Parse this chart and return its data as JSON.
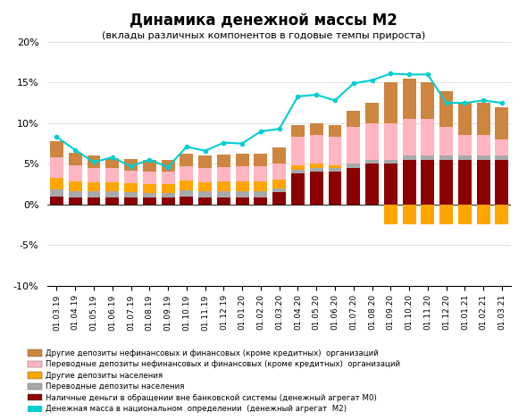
{
  "title": "Динамика денежной массы М2",
  "subtitle": "(вклады различных компонентов в годовые темпы прироста)",
  "labels": [
    "01.03.19",
    "01.04.19",
    "01.05.19",
    "01.06.19",
    "01.07.19",
    "01.08.19",
    "01.09.19",
    "01.10.19",
    "01.11.19",
    "01.12.19",
    "01.01.20",
    "01.02.20",
    "01.03.20",
    "01.04.20",
    "01.05.20",
    "01.06.20",
    "01.07.20",
    "01.08.20",
    "01.09.20",
    "01.10.20",
    "01.11.20",
    "01.12.20",
    "01.01.21",
    "01.02.21",
    "01.03.21"
  ],
  "m0": [
    1.0,
    0.9,
    0.8,
    0.9,
    0.8,
    0.8,
    0.8,
    1.0,
    0.9,
    0.9,
    0.9,
    0.9,
    1.5,
    3.8,
    4.0,
    4.0,
    4.5,
    5.0,
    5.0,
    5.5,
    5.5,
    5.5,
    5.5,
    5.5,
    5.5
  ],
  "transp_deposits_pop": [
    0.8,
    0.7,
    0.8,
    0.7,
    0.7,
    0.6,
    0.6,
    0.7,
    0.7,
    0.7,
    0.7,
    0.7,
    0.5,
    0.5,
    0.5,
    0.5,
    0.5,
    0.5,
    0.5,
    0.5,
    0.5,
    0.5,
    0.5,
    0.5,
    0.5
  ],
  "other_deposits_pop": [
    1.5,
    1.2,
    1.1,
    1.1,
    1.1,
    1.1,
    1.1,
    1.2,
    1.1,
    1.2,
    1.2,
    1.2,
    1.0,
    0.5,
    0.5,
    0.3,
    0.0,
    0.0,
    -2.5,
    -2.5,
    -2.5,
    -2.5,
    -2.5,
    -2.5,
    -2.5
  ],
  "transp_deposits_org": [
    2.5,
    2.0,
    1.8,
    1.8,
    1.5,
    1.5,
    1.5,
    1.8,
    1.8,
    1.8,
    1.9,
    1.9,
    2.0,
    3.5,
    3.5,
    3.5,
    4.5,
    4.5,
    4.5,
    4.5,
    4.5,
    3.5,
    2.5,
    2.5,
    2.0
  ],
  "other_deposits_org": [
    2.0,
    1.5,
    1.5,
    1.2,
    1.5,
    1.5,
    1.5,
    1.5,
    1.5,
    1.5,
    1.5,
    1.5,
    2.0,
    1.5,
    1.5,
    1.5,
    2.0,
    2.5,
    5.0,
    5.0,
    4.5,
    4.5,
    4.0,
    4.0,
    4.0
  ],
  "m2_line": [
    8.3,
    6.7,
    5.2,
    5.8,
    4.7,
    5.5,
    4.6,
    7.1,
    6.6,
    7.6,
    7.5,
    9.0,
    9.3,
    13.3,
    13.5,
    12.8,
    14.9,
    15.3,
    16.1,
    16.0,
    16.0,
    12.5,
    12.5,
    12.8,
    12.5
  ],
  "colors": {
    "m0": "#8B0000",
    "transp_deposits_pop": "#A9A9A9",
    "other_deposits_pop": "#FFA500",
    "transp_deposits_org": "#FFB6C1",
    "other_deposits_org": "#CD853F",
    "m2_line": "#00CED1"
  },
  "legend_labels": [
    "Другие депозиты нефинансовых и финансовых (кроме кредитных)  организаций",
    "Переводные депозиты нефинансовых и финансовых (кроме кредитных)  организаций",
    "Другие депозиты населения",
    "Переводные депозиты населения",
    "Наличные деньги в обращении вне банковской системы (денежный агрегат М0)",
    "Денежная масса в национальном  определении  (денежный агрегат  М2)"
  ],
  "ylim": [
    -10,
    20
  ],
  "yticks": [
    -10,
    -5,
    0,
    5,
    10,
    15,
    20
  ],
  "background_color": "#FFFFFF",
  "grid_color": "#D3D3D3"
}
